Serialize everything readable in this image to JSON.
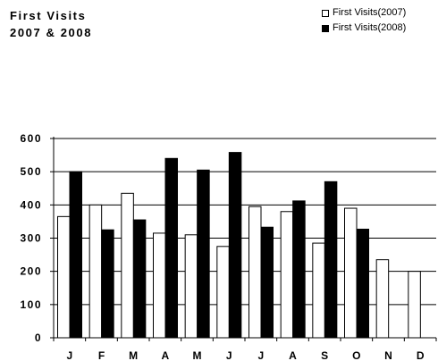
{
  "chart_data": {
    "type": "bar",
    "title": [
      "First Visits",
      "2007 & 2008"
    ],
    "categories": [
      "J",
      "F",
      "M",
      "A",
      "M",
      "J",
      "J",
      "A",
      "S",
      "O",
      "N",
      "D"
    ],
    "series": [
      {
        "name": "First Visits(2007)",
        "color": "#ffffff",
        "values": [
          365,
          400,
          435,
          315,
          310,
          275,
          395,
          380,
          285,
          390,
          235,
          200
        ]
      },
      {
        "name": "First Visits(2008)",
        "color": "#000000",
        "values": [
          500,
          325,
          355,
          540,
          505,
          558,
          333,
          412,
          470,
          327,
          null,
          null
        ]
      }
    ],
    "yticks": [
      "0",
      "100",
      "200",
      "300",
      "400",
      "500",
      "600"
    ],
    "ylim": [
      0,
      600
    ],
    "grid": true,
    "legend_position": "top-right"
  }
}
